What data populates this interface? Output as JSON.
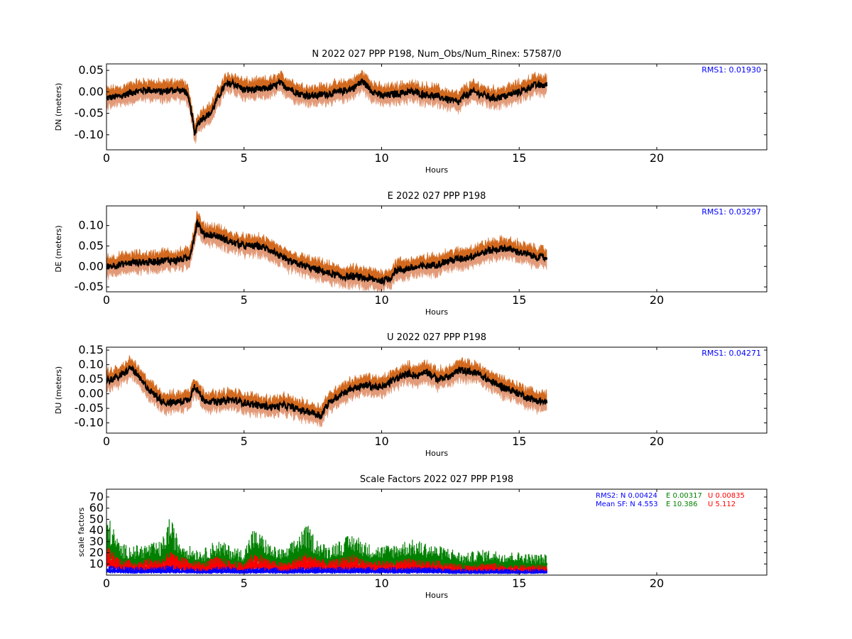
{
  "chart_data": [
    {
      "type": "line",
      "title": "N 2022 027 PPP  P198, Num_Obs/Num_Rinex: 57587/0",
      "xlabel": "Hours",
      "ylabel": "DN (meters)",
      "xlim": [
        0,
        24
      ],
      "ylim": [
        -0.135,
        0.065
      ],
      "xticks": [
        "0",
        "5",
        "10",
        "15",
        "20"
      ],
      "yticks": [
        "0.05",
        "0.00",
        "-0.05",
        "-0.10"
      ],
      "annotations": [
        "RMS1:  0.01930"
      ],
      "colors": {
        "line": "#000000",
        "band_upper": "#d2691e",
        "band_lower": "#e29a78",
        "annotation": "#0000ff"
      },
      "series": [
        {
          "x": [
            0,
            0.5,
            1,
            1.5,
            2,
            2.5,
            2.9,
            3.1,
            3.2,
            3.3,
            3.5,
            3.8,
            4.0,
            4.3,
            4.6,
            5,
            5.5,
            6,
            6.3,
            6.6,
            7,
            7.5,
            8,
            8.5,
            9,
            9.3,
            9.6,
            10,
            10.5,
            11,
            11.5,
            12,
            12.5,
            12.8,
            13,
            13.3,
            13.6,
            14,
            14.5,
            15,
            15.2,
            15.5,
            16
          ],
          "y": [
            -0.015,
            -0.01,
            0.0,
            0.005,
            0.0,
            0.005,
            0.0,
            -0.05,
            -0.1,
            -0.075,
            -0.06,
            -0.05,
            -0.02,
            0.015,
            0.02,
            0.005,
            0.005,
            0.01,
            0.02,
            0.01,
            -0.005,
            -0.01,
            -0.005,
            0.0,
            0.01,
            0.025,
            0.005,
            -0.01,
            -0.005,
            0.0,
            -0.005,
            -0.01,
            -0.02,
            -0.025,
            -0.01,
            0.0,
            -0.005,
            -0.015,
            -0.01,
            0.0,
            0.005,
            0.015,
            0.015
          ]
        }
      ]
    },
    {
      "type": "line",
      "title": "E 2022 027 PPP  P198",
      "xlabel": "Hours",
      "ylabel": "DE (meters)",
      "xlim": [
        0,
        24
      ],
      "ylim": [
        -0.062,
        0.148
      ],
      "xticks": [
        "0",
        "5",
        "10",
        "15",
        "20"
      ],
      "yticks": [
        "0.10",
        "0.05",
        "0.00",
        "-0.05"
      ],
      "annotations": [
        "RMS1:  0.03297"
      ],
      "colors": {
        "line": "#000000",
        "band_upper": "#d2691e",
        "band_lower": "#e29a78",
        "annotation": "#0000ff"
      },
      "series": [
        {
          "x": [
            0,
            0.5,
            1,
            1.5,
            2,
            2.5,
            3,
            3.15,
            3.3,
            3.5,
            4,
            4.5,
            5,
            5.5,
            6,
            6.5,
            7,
            7.5,
            8,
            8.5,
            9,
            9.5,
            10,
            10.3,
            10.5,
            11,
            11.5,
            12,
            12.5,
            13,
            13.5,
            14,
            14.5,
            15,
            15.5,
            16
          ],
          "y": [
            0.0,
            0.005,
            0.01,
            0.01,
            0.015,
            0.015,
            0.02,
            0.06,
            0.11,
            0.08,
            0.075,
            0.06,
            0.05,
            0.05,
            0.04,
            0.015,
            0.005,
            -0.005,
            -0.015,
            -0.025,
            -0.025,
            -0.03,
            -0.035,
            -0.03,
            -0.01,
            -0.005,
            0.0,
            0.005,
            0.015,
            0.02,
            0.03,
            0.04,
            0.045,
            0.035,
            0.025,
            0.02
          ]
        }
      ]
    },
    {
      "type": "line",
      "title": "U 2022 027 PPP  P198",
      "xlabel": "Hours",
      "ylabel": "DU (meters)",
      "xlim": [
        0,
        24
      ],
      "ylim": [
        -0.135,
        0.16
      ],
      "xticks": [
        "0",
        "5",
        "10",
        "15",
        "20"
      ],
      "yticks": [
        "0.15",
        "0.10",
        "0.05",
        "0.00",
        "-0.05",
        "-0.10"
      ],
      "annotations": [
        "RMS1:  0.04271"
      ],
      "colors": {
        "line": "#000000",
        "band_upper": "#d2691e",
        "band_lower": "#e29a78",
        "annotation": "#0000ff"
      },
      "series": [
        {
          "x": [
            0,
            0.5,
            0.9,
            1.3,
            1.7,
            2.1,
            2.5,
            3,
            3.2,
            3.5,
            4,
            4.5,
            5,
            5.5,
            6,
            6.5,
            7,
            7.5,
            7.8,
            8,
            8.5,
            9,
            9.5,
            10,
            10.3,
            10.5,
            11,
            11.3,
            11.6,
            12,
            12.5,
            12.8,
            13,
            13.5,
            14,
            14.5,
            15,
            15.5,
            16
          ],
          "y": [
            0.045,
            0.06,
            0.09,
            0.04,
            0.0,
            -0.03,
            -0.03,
            -0.02,
            0.03,
            -0.02,
            -0.03,
            -0.02,
            -0.03,
            -0.04,
            -0.045,
            -0.04,
            -0.055,
            -0.065,
            -0.075,
            -0.04,
            0.0,
            0.02,
            0.03,
            0.02,
            0.04,
            0.05,
            0.07,
            0.06,
            0.08,
            0.05,
            0.06,
            0.08,
            0.08,
            0.07,
            0.04,
            0.02,
            0.0,
            -0.02,
            -0.03
          ]
        }
      ]
    },
    {
      "type": "scatter",
      "title": "Scale Factors 2022 027 PPP  P198",
      "xlabel": "Hours",
      "ylabel": "scale factors",
      "xlim": [
        0,
        24
      ],
      "ylim": [
        0,
        77
      ],
      "xticks": [
        "0",
        "5",
        "10",
        "15",
        "20"
      ],
      "yticks": [
        "70",
        "60",
        "50",
        "40",
        "30",
        "20",
        "10"
      ],
      "annotations": [
        {
          "text": "RMS2: N  0.00424",
          "color": "#0000ff"
        },
        {
          "text": "E  0.00317",
          "color": "#008000"
        },
        {
          "text": "U  0.00835",
          "color": "#ff0000"
        },
        {
          "text": "Mean SF: N   4.553",
          "color": "#0000ff"
        },
        {
          "text": "E  10.386",
          "color": "#008000"
        },
        {
          "text": "U   5.112",
          "color": "#ff0000"
        }
      ],
      "series": [
        {
          "color": "#008000",
          "x": [
            0,
            0.5,
            1,
            1.5,
            2,
            2.3,
            2.6,
            3,
            3.5,
            4,
            4.5,
            5,
            5.3,
            5.6,
            6,
            6.5,
            7,
            7.3,
            7.6,
            8,
            8.5,
            9,
            9.5,
            10,
            10.5,
            11,
            11.5,
            12,
            12.5,
            13,
            13.5,
            14,
            14.5,
            15,
            15.5,
            16
          ],
          "y": [
            30,
            15,
            14,
            15,
            16,
            28,
            18,
            14,
            12,
            17,
            14,
            12,
            22,
            20,
            14,
            12,
            20,
            24,
            18,
            14,
            17,
            20,
            15,
            14,
            15,
            17,
            16,
            14,
            13,
            10,
            12,
            12,
            11,
            11,
            10,
            10
          ]
        },
        {
          "color": "#ff0000",
          "x": [
            0,
            0.5,
            1,
            1.5,
            2,
            2.3,
            2.6,
            3,
            3.5,
            4,
            4.5,
            5,
            5.3,
            5.6,
            6,
            6.5,
            7,
            7.3,
            7.6,
            8,
            8.5,
            9,
            9.5,
            10,
            10.5,
            11,
            11.5,
            12,
            12.5,
            13,
            13.5,
            14,
            14.5,
            15,
            15.5,
            16
          ],
          "y": [
            15,
            8,
            7,
            8,
            8,
            12,
            9,
            8,
            6,
            9,
            7,
            6,
            11,
            10,
            7,
            6,
            9,
            11,
            9,
            7,
            8,
            10,
            7,
            7,
            7,
            8,
            7,
            7,
            6,
            5,
            6,
            6,
            5,
            5,
            5,
            5
          ]
        },
        {
          "color": "#0000ff",
          "x": [
            0,
            0.5,
            1,
            1.5,
            2,
            2.3,
            2.6,
            3,
            3.5,
            4,
            4.5,
            5,
            5.3,
            5.6,
            6,
            6.5,
            7,
            7.3,
            7.6,
            8,
            8.5,
            9,
            9.5,
            10,
            10.5,
            11,
            11.5,
            12,
            12.5,
            13,
            13.5,
            14,
            14.5,
            15,
            15.5,
            16
          ],
          "y": [
            5,
            4,
            4,
            4,
            4,
            5,
            4,
            4,
            3,
            4,
            4,
            3,
            4,
            4,
            4,
            3,
            4,
            4,
            4,
            4,
            4,
            4,
            4,
            4,
            4,
            4,
            4,
            4,
            3,
            3,
            3,
            3,
            3,
            3,
            3,
            3
          ]
        }
      ]
    }
  ]
}
